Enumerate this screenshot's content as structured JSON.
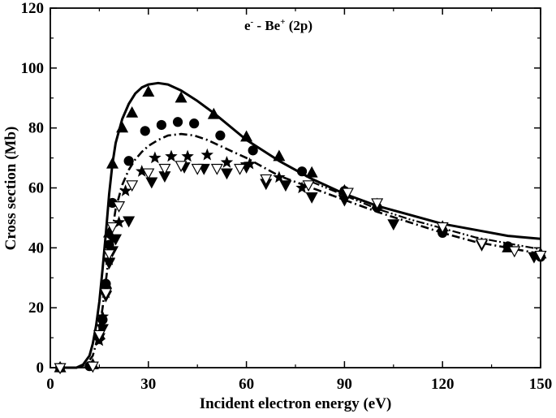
{
  "chart_data": {
    "type": "line",
    "title": {
      "main": "e",
      "sup1": "-",
      "mid": " - Be",
      "sup2": "+",
      "tail": " (2p)"
    },
    "xlabel": "Incident electron energy (eV)",
    "ylabel": "Cross section (Mb)",
    "xlim": [
      0,
      150
    ],
    "ylim": [
      0,
      120
    ],
    "x_ticks": [
      0,
      30,
      60,
      90,
      120,
      150
    ],
    "y_ticks": [
      0,
      20,
      40,
      60,
      80,
      100,
      120
    ],
    "grid": false,
    "curves": [
      {
        "style": "solid",
        "color": "#000000",
        "x": [
          3,
          8,
          10,
          12,
          13,
          14,
          15,
          16,
          17,
          18,
          19,
          20,
          22,
          24,
          26,
          28,
          30,
          33,
          36,
          40,
          45,
          50,
          60,
          70,
          80,
          90,
          100,
          110,
          120,
          130,
          140,
          150
        ],
        "y": [
          0,
          0,
          1,
          4,
          8,
          14,
          22,
          33,
          45,
          58,
          68,
          75,
          83,
          88,
          91.5,
          93.5,
          94.5,
          95,
          94.5,
          92.5,
          89,
          85,
          76,
          69,
          63,
          58,
          54,
          51,
          48,
          46,
          44,
          43
        ]
      },
      {
        "style": "dashdot",
        "color": "#000000",
        "x": [
          8,
          11,
          13,
          14,
          15,
          16,
          17,
          18,
          19,
          20,
          22,
          24,
          26,
          28,
          30,
          33,
          36,
          40,
          44,
          48,
          55,
          60,
          70,
          80,
          90,
          100,
          110,
          120,
          130,
          140,
          150
        ],
        "y": [
          0,
          1,
          4,
          8,
          13,
          20,
          29,
          38,
          46,
          53,
          61,
          66,
          69.5,
          72,
          74,
          76,
          77.5,
          78,
          77.5,
          76,
          72.5,
          70,
          64,
          60,
          56,
          52,
          48.5,
          45,
          42,
          40,
          38
        ]
      },
      {
        "style": "dashdotdot",
        "color": "#000000",
        "x": [
          80,
          90,
          100,
          110,
          120,
          130,
          140,
          150
        ],
        "y": [
          62,
          57.5,
          53,
          49.5,
          46.5,
          43.5,
          41.5,
          39.5
        ]
      }
    ],
    "markers": [
      {
        "shape": "triangle-up",
        "filled": true,
        "x": [
          3,
          13,
          15,
          17,
          18,
          19,
          22,
          25,
          30,
          40,
          50,
          60,
          70,
          80,
          90,
          100,
          120,
          140,
          150
        ],
        "y": [
          0,
          1,
          11,
          28,
          45,
          68,
          80,
          85,
          92,
          90,
          84.5,
          77,
          70.5,
          65,
          59,
          54.5,
          47,
          40,
          38
        ]
      },
      {
        "shape": "circle",
        "filled": true,
        "x": [
          3,
          12,
          16,
          17,
          18,
          19,
          24,
          29,
          34,
          39,
          44,
          52,
          62,
          77,
          90,
          100,
          120,
          140,
          150
        ],
        "y": [
          0,
          0.5,
          16,
          28,
          41,
          55,
          69,
          79,
          81,
          82,
          81.5,
          77.5,
          72.5,
          65.5,
          59,
          53.5,
          45,
          40.5,
          37
        ]
      },
      {
        "shape": "star",
        "filled": true,
        "x": [
          15,
          16,
          17,
          18,
          19,
          21,
          23,
          28,
          32,
          37,
          42,
          48,
          54,
          61,
          70,
          77
        ],
        "y": [
          9,
          17,
          25,
          36,
          43,
          48.5,
          59,
          65.5,
          70,
          70.5,
          70.5,
          71,
          68.5,
          68,
          63.5,
          60
        ]
      },
      {
        "shape": "triangle-down",
        "filled": true,
        "x": [
          15,
          16,
          17,
          18,
          19,
          20,
          24,
          31,
          35,
          41,
          47,
          54,
          60,
          66,
          72,
          80,
          90,
          105,
          132,
          148
        ],
        "y": [
          10,
          13,
          24,
          35,
          39,
          43,
          49,
          62,
          64,
          67,
          66.5,
          65,
          67,
          61.5,
          61,
          57,
          56,
          48,
          41,
          37
        ]
      },
      {
        "shape": "triangle-down",
        "filled": false,
        "x": [
          3,
          13,
          15,
          17,
          18,
          19,
          21,
          25,
          30,
          35,
          40,
          45,
          51,
          58,
          66,
          79,
          91,
          100,
          120,
          132,
          142,
          150
        ],
        "y": [
          0,
          0.5,
          11,
          25,
          38,
          47,
          54,
          61,
          65,
          66.5,
          67.5,
          66.5,
          66.5,
          66.5,
          63,
          61,
          58.5,
          55,
          47,
          41.5,
          39,
          37.5
        ]
      }
    ]
  }
}
